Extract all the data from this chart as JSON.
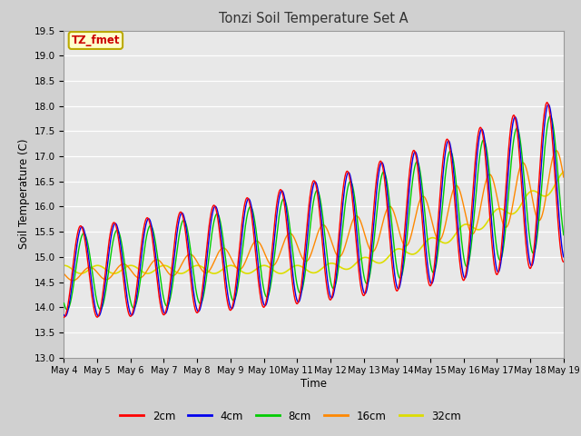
{
  "title": "Tonzi Soil Temperature Set A",
  "xlabel": "Time",
  "ylabel": "Soil Temperature (C)",
  "ylim": [
    13.0,
    19.5
  ],
  "yticks": [
    13.0,
    13.5,
    14.0,
    14.5,
    15.0,
    15.5,
    16.0,
    16.5,
    17.0,
    17.5,
    18.0,
    18.5,
    19.0,
    19.5
  ],
  "fig_bg": "#d0d0d0",
  "ax_bg": "#e8e8e8",
  "grid_color": "#ffffff",
  "series_colors": {
    "2cm": "#ff0000",
    "4cm": "#0000ee",
    "8cm": "#00cc00",
    "16cm": "#ff8800",
    "32cm": "#dddd00"
  },
  "x_tick_labels": [
    "May 4",
    "May 5",
    "May 6",
    "May 7",
    "May 8",
    "May 9",
    "May 10",
    "May 11",
    "May 12",
    "May 13",
    "May 14",
    "May 15",
    "May 16",
    "May 17",
    "May 18",
    "May 19"
  ],
  "annotation_text": "TZ_fmet",
  "annotation_color": "#cc0000",
  "annotation_bg": "#ffffcc",
  "annotation_border": "#bbaa00"
}
